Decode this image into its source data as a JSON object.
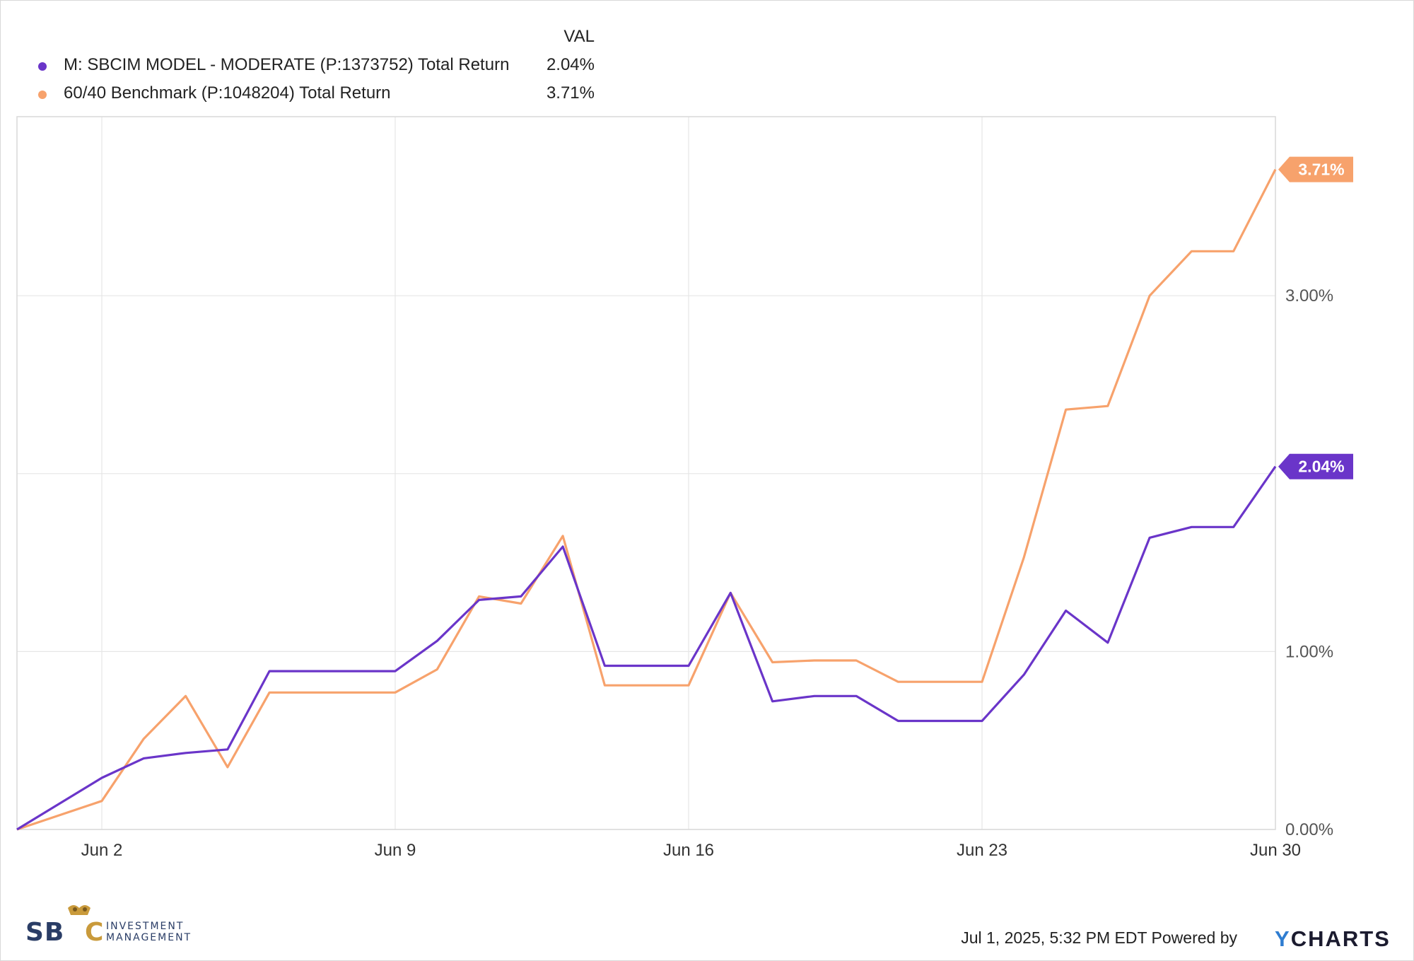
{
  "legend": {
    "header": "VAL",
    "items": [
      {
        "name": "M: SBCIM MODEL - MODERATE (P:1373752) Total Return",
        "value": "2.04%",
        "color": "#6a35c9"
      },
      {
        "name": "60/40 Benchmark (P:1048204) Total Return",
        "value": "3.71%",
        "color": "#f7a26c"
      }
    ]
  },
  "footer": {
    "timestamp_text": "Jul 1, 2025, 5:32 PM EDT Powered by",
    "brand_y": "Y",
    "brand_rest": "CHARTS",
    "logo_main": "SBC",
    "logo_sub1": "INVESTMENT",
    "logo_sub2": "MANAGEMENT"
  },
  "chart_data": {
    "type": "line",
    "x": [
      "2025-05-30",
      "2025-06-02",
      "2025-06-03",
      "2025-06-04",
      "2025-06-05",
      "2025-06-06",
      "2025-06-09",
      "2025-06-10",
      "2025-06-11",
      "2025-06-12",
      "2025-06-13",
      "2025-06-16",
      "2025-06-17",
      "2025-06-18",
      "2025-06-20",
      "2025-06-23",
      "2025-06-24",
      "2025-06-25",
      "2025-06-26",
      "2025-06-27",
      "2025-06-30"
    ],
    "x_ticks": [
      {
        "date": "2025-06-02",
        "label": "Jun 2"
      },
      {
        "date": "2025-06-09",
        "label": "Jun 9"
      },
      {
        "date": "2025-06-16",
        "label": "Jun 16"
      },
      {
        "date": "2025-06-23",
        "label": "Jun 23"
      },
      {
        "date": "2025-06-30",
        "label": "Jun 30"
      }
    ],
    "y_ticks": [
      {
        "value": 0,
        "label": "0.00%"
      },
      {
        "value": 1,
        "label": "1.00%"
      },
      {
        "value": 3,
        "label": "3.00%"
      }
    ],
    "ylim": [
      0,
      4
    ],
    "xlim": [
      "2025-05-30",
      "2025-06-30"
    ],
    "grid": true,
    "series": [
      {
        "name": "M: SBCIM MODEL - MODERATE (P:1373752) Total Return",
        "color": "#6a35c9",
        "end_label": "2.04%",
        "points": [
          [
            "2025-05-30",
            0.0
          ],
          [
            "2025-06-02",
            0.29
          ],
          [
            "2025-06-03",
            0.4
          ],
          [
            "2025-06-04",
            0.43
          ],
          [
            "2025-06-05",
            0.45
          ],
          [
            "2025-06-06",
            0.89
          ],
          [
            "2025-06-09",
            0.89
          ],
          [
            "2025-06-10",
            1.06
          ],
          [
            "2025-06-11",
            1.29
          ],
          [
            "2025-06-12",
            1.31
          ],
          [
            "2025-06-13",
            1.59
          ],
          [
            "2025-06-14",
            0.92
          ],
          [
            "2025-06-16",
            0.92
          ],
          [
            "2025-06-17",
            1.33
          ],
          [
            "2025-06-18",
            0.72
          ],
          [
            "2025-06-19",
            0.75
          ],
          [
            "2025-06-20",
            0.75
          ],
          [
            "2025-06-21",
            0.61
          ],
          [
            "2025-06-23",
            0.61
          ],
          [
            "2025-06-24",
            0.87
          ],
          [
            "2025-06-25",
            1.23
          ],
          [
            "2025-06-26",
            1.05
          ],
          [
            "2025-06-27",
            1.64
          ],
          [
            "2025-06-28",
            1.7
          ],
          [
            "2025-06-29",
            1.7
          ],
          [
            "2025-06-30",
            2.04
          ]
        ]
      },
      {
        "name": "60/40 Benchmark (P:1048204) Total Return",
        "color": "#f7a26c",
        "end_label": "3.71%",
        "points": [
          [
            "2025-05-30",
            0.0
          ],
          [
            "2025-06-02",
            0.16
          ],
          [
            "2025-06-03",
            0.51
          ],
          [
            "2025-06-04",
            0.75
          ],
          [
            "2025-06-05",
            0.35
          ],
          [
            "2025-06-06",
            0.77
          ],
          [
            "2025-06-09",
            0.77
          ],
          [
            "2025-06-10",
            0.9
          ],
          [
            "2025-06-11",
            1.31
          ],
          [
            "2025-06-12",
            1.27
          ],
          [
            "2025-06-13",
            1.65
          ],
          [
            "2025-06-14",
            0.81
          ],
          [
            "2025-06-16",
            0.81
          ],
          [
            "2025-06-17",
            1.33
          ],
          [
            "2025-06-18",
            0.94
          ],
          [
            "2025-06-19",
            0.95
          ],
          [
            "2025-06-20",
            0.95
          ],
          [
            "2025-06-21",
            0.83
          ],
          [
            "2025-06-23",
            0.83
          ],
          [
            "2025-06-24",
            1.53
          ],
          [
            "2025-06-25",
            2.36
          ],
          [
            "2025-06-26",
            2.38
          ],
          [
            "2025-06-27",
            3.0
          ],
          [
            "2025-06-28",
            3.25
          ],
          [
            "2025-06-29",
            3.25
          ],
          [
            "2025-06-30",
            3.71
          ]
        ]
      }
    ]
  }
}
